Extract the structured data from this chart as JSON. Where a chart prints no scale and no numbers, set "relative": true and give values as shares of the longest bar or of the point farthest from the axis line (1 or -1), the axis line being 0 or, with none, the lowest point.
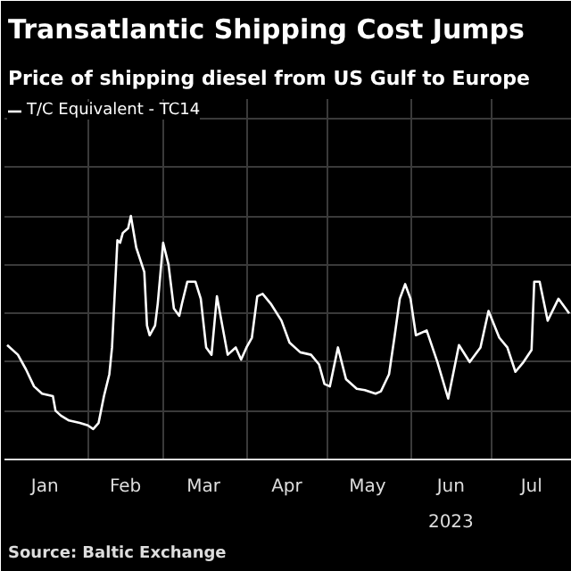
{
  "chart_data": {
    "type": "line",
    "title": "Transatlantic Shipping Cost Jumps",
    "subtitle": "Price of shipping diesel from US Gulf to Europe",
    "relative": true,
    "grid": true,
    "legend": "top left",
    "annotations": [
      "2023",
      "Source: Baltic Exchange"
    ],
    "xlim": [
      "2023-01-01",
      "2023-07-31"
    ],
    "xticks": [
      {
        "value": "2023-02-01",
        "label": null
      },
      {
        "value": "2023-03-01",
        "label": null
      },
      {
        "value": "2023-04-01",
        "label": null
      },
      {
        "value": "2023-05-01",
        "label": null
      },
      {
        "value": "2023-06-01",
        "label": null
      },
      {
        "value": "2023-07-01",
        "label": null
      },
      {
        "value": "2023-01-16",
        "label": "Jan"
      },
      {
        "value": "2023-02-15",
        "label": "Feb"
      },
      {
        "value": "2023-03-16",
        "label": "Mar"
      },
      {
        "value": "2023-04-16",
        "label": "Apr"
      },
      {
        "value": "2023-05-16",
        "label": "May"
      },
      {
        "value": "2023-06-16",
        "label": "Jun"
      },
      {
        "value": "2023-07-16",
        "label": "Jul"
      }
    ],
    "x": [
      "2023-01-02",
      "2023-01-06",
      "2023-01-09",
      "2023-01-12",
      "2023-01-15",
      "2023-01-19",
      "2023-01-20",
      "2023-01-22",
      "2023-01-25",
      "2023-01-29",
      "2023-02-01",
      "2023-02-03",
      "2023-02-05",
      "2023-02-07",
      "2023-02-09",
      "2023-02-10",
      "2023-02-11",
      "2023-02-12",
      "2023-02-13",
      "2023-02-14",
      "2023-02-16",
      "2023-02-17",
      "2023-02-19",
      "2023-02-22",
      "2023-02-23",
      "2023-02-24",
      "2023-02-26",
      "2023-02-27",
      "2023-03-01",
      "2023-03-03",
      "2023-03-05",
      "2023-03-07",
      "2023-03-08",
      "2023-03-10",
      "2023-03-13",
      "2023-03-15",
      "2023-03-17",
      "2023-03-19",
      "2023-03-21",
      "2023-03-23",
      "2023-03-25",
      "2023-03-28",
      "2023-03-30",
      "2023-04-01",
      "2023-04-03",
      "2023-04-05",
      "2023-04-07",
      "2023-04-10",
      "2023-04-14",
      "2023-04-17",
      "2023-04-21",
      "2023-04-25",
      "2023-04-28",
      "2023-04-30",
      "2023-05-02",
      "2023-05-05",
      "2023-05-08",
      "2023-05-12",
      "2023-05-15",
      "2023-05-19",
      "2023-05-21",
      "2023-05-24",
      "2023-05-26",
      "2023-05-28",
      "2023-05-30",
      "2023-06-01",
      "2023-06-03",
      "2023-06-07",
      "2023-06-11",
      "2023-06-15",
      "2023-06-19",
      "2023-06-23",
      "2023-06-27",
      "2023-06-30",
      "2023-07-04",
      "2023-07-07",
      "2023-07-10",
      "2023-07-13",
      "2023-07-16",
      "2023-07-17",
      "2023-07-19",
      "2023-07-22",
      "2023-07-26",
      "2023-07-30"
    ],
    "series": [
      {
        "name": "T/C Equivalent - TC14",
        "color": "#ffffff",
        "values": [
          0.47,
          0.43,
          0.37,
          0.3,
          0.27,
          0.26,
          0.2,
          0.18,
          0.16,
          0.15,
          0.14,
          0.125,
          0.15,
          0.26,
          0.35,
          0.46,
          0.68,
          0.9,
          0.89,
          0.93,
          0.95,
          1.0,
          0.87,
          0.77,
          0.55,
          0.51,
          0.55,
          0.64,
          0.89,
          0.8,
          0.62,
          0.59,
          0.64,
          0.73,
          0.73,
          0.66,
          0.46,
          0.43,
          0.67,
          0.55,
          0.43,
          0.46,
          0.41,
          0.46,
          0.5,
          0.67,
          0.68,
          0.64,
          0.57,
          0.48,
          0.44,
          0.43,
          0.39,
          0.31,
          0.3,
          0.46,
          0.33,
          0.29,
          0.285,
          0.27,
          0.28,
          0.35,
          0.5,
          0.66,
          0.72,
          0.66,
          0.51,
          0.53,
          0.4,
          0.25,
          0.47,
          0.4,
          0.46,
          0.61,
          0.5,
          0.46,
          0.36,
          0.4,
          0.45,
          0.73,
          0.73,
          0.57,
          0.66,
          0.6
        ]
      }
    ]
  }
}
